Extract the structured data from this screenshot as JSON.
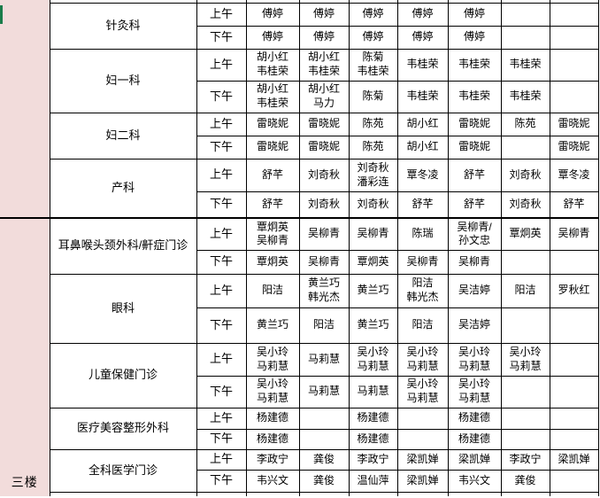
{
  "colors": {
    "floor_column_fill": "#f2dcdb",
    "error_indicator_green": "#008000",
    "edge_fragment_green": "#1a7c4a",
    "grid_line": "#000000"
  },
  "sessions": [
    "上午",
    "下午"
  ],
  "day_columns": 7,
  "sections": [
    {
      "floor": "",
      "departments": [
        {
          "name": "针灸科",
          "am": [
            "傅婷",
            "傅婷",
            "傅婷",
            "傅婷",
            "傅婷",
            "",
            ""
          ],
          "pm": [
            "傅婷",
            "傅婷",
            "傅婷",
            "傅婷",
            "傅婷",
            "",
            ""
          ]
        },
        {
          "name": "妇一科",
          "am": [
            "胡小红\n韦桂荣",
            "胡小红\n韦桂荣",
            "陈菊\n韦桂荣",
            "韦桂荣",
            "韦桂荣",
            "韦桂荣",
            ""
          ],
          "pm": [
            "胡小红\n韦桂荣",
            "胡小红\n马力",
            "陈菊",
            "韦桂荣",
            "韦桂荣",
            "韦桂荣",
            ""
          ],
          "pm_markers": [
            2
          ]
        },
        {
          "name": "妇二科",
          "am": [
            "雷晓妮",
            "雷晓妮",
            "陈苑",
            "胡小红",
            "雷晓妮",
            "陈苑",
            "雷晓妮"
          ],
          "pm": [
            "雷晓妮",
            "雷晓妮",
            "陈苑",
            "胡小红",
            "雷晓妮",
            "",
            "雷晓妮"
          ]
        },
        {
          "name": "产科",
          "am": [
            "舒芊",
            "刘奇秋",
            "刘奇秋\n潘彩连",
            "覃冬凌",
            "舒芊",
            "刘奇秋",
            "覃冬凌"
          ],
          "pm": [
            "舒芊",
            "刘奇秋",
            "刘奇秋",
            "舒芊",
            "舒芊",
            "刘奇秋",
            "舒芊"
          ]
        }
      ]
    },
    {
      "floor": "三楼",
      "departments": [
        {
          "name": "耳鼻喉头颈外科/鼾症门诊",
          "am": [
            "覃炯英\n吴柳青",
            "吴柳青",
            "吴柳青",
            "陈瑞",
            "吴柳青/\n孙文忠",
            "覃炯英",
            "吴柳青"
          ],
          "pm": [
            "覃炯英",
            "吴柳青",
            "覃炯英",
            "吴柳青",
            "吴柳青",
            "",
            ""
          ]
        },
        {
          "name": "眼科",
          "am": [
            "阳洁",
            "黄兰巧\n韩光杰",
            "黄兰巧",
            "阳洁\n韩光杰",
            "吴洁婷",
            "阳洁",
            "罗秋红"
          ],
          "pm": [
            "黄兰巧",
            "阳洁",
            "黄兰巧",
            "阳洁",
            "吴洁婷",
            "",
            ""
          ],
          "pm_markers": [
            2,
            4
          ]
        },
        {
          "name": "儿童保健门诊",
          "am": [
            "吴小玲\n马莉慧",
            "马莉慧",
            "吴小玲\n马莉慧",
            "吴小玲\n马莉慧",
            "吴小玲\n马莉慧",
            "吴小玲\n马莉慧",
            ""
          ],
          "pm": [
            "吴小玲\n马莉慧",
            "马莉慧",
            "马莉慧",
            "吴小玲\n马莉慧",
            "吴小玲\n马莉慧",
            "",
            ""
          ],
          "am_markers": [
            0,
            1,
            2,
            3,
            4,
            5
          ],
          "pm_markers": [
            0,
            1,
            3,
            4
          ]
        },
        {
          "name": "医疗美容整形外科",
          "am": [
            "杨建德",
            "",
            "杨建德",
            "",
            "杨建德",
            "",
            ""
          ],
          "pm": [
            "杨建德",
            "",
            "杨建德",
            "",
            "杨建德",
            "",
            ""
          ]
        },
        {
          "name": "全科医学门诊",
          "am": [
            "李政宁",
            "龚俊",
            "李政宁",
            "梁凯婵",
            "梁凯婵",
            "李政宁",
            "梁凯婵"
          ],
          "pm": [
            "韦兴文",
            "龚俊",
            "温仙萍",
            "梁凯婵",
            "韦兴文",
            "龚俊",
            ""
          ]
        }
      ]
    }
  ]
}
